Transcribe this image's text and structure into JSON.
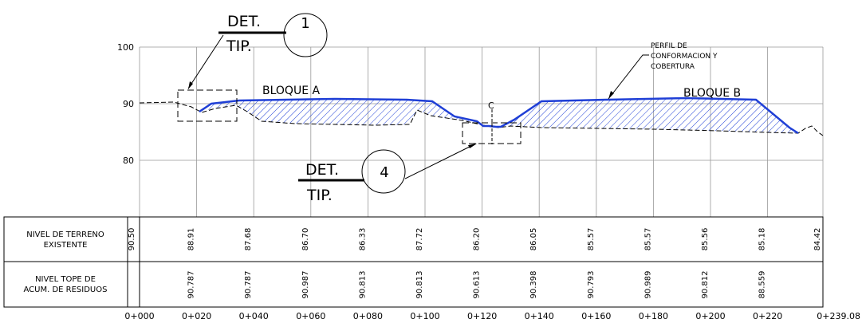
{
  "profile": {
    "stations": [
      "0+000",
      "0+020",
      "0+040",
      "0+060",
      "0+080",
      "0+100",
      "0+120",
      "0+140",
      "0+160",
      "0+180",
      "0+200",
      "0+220",
      "0+239.08"
    ],
    "y_ticks": [
      "100",
      "90",
      "80"
    ],
    "ground_level": [
      "90.50",
      "88.91",
      "87.68",
      "86.70",
      "86.33",
      "87.72",
      "86.20",
      "86.05",
      "85.57",
      "85.57",
      "85.56",
      "85.18",
      "84.42"
    ],
    "residue_top": [
      "",
      "90.787",
      "90.787",
      "90.987",
      "90.813",
      "90.813",
      "90.613",
      "90.398",
      "90.793",
      "90.989",
      "90.812",
      "88.559",
      ""
    ],
    "row_labels": {
      "ground_1": "NIVEL DE TERRENO",
      "ground_2": "EXISTENTE",
      "residue_1": "NIVEL TOPE DE",
      "residue_2": "ACUM. DE RESIDUOS"
    }
  },
  "annotations": {
    "bloque_a": "BLOQUE A",
    "bloque_b": "BLOQUE B",
    "centerline": "C",
    "perfil_1": "PERFIL DE",
    "perfil_2": "CONFORMACION Y",
    "perfil_3": "COBERTURA",
    "det_top": "DET.",
    "tip_top": "TIP.",
    "det_top_num": "1",
    "det_bottom": "DET.",
    "tip_bottom": "TIP.",
    "det_bottom_num": "4"
  },
  "colors": {
    "profile_line": "#1f3fd6",
    "hatch": "#1f3fd6",
    "grid": "#999999",
    "ink": "#000000"
  }
}
